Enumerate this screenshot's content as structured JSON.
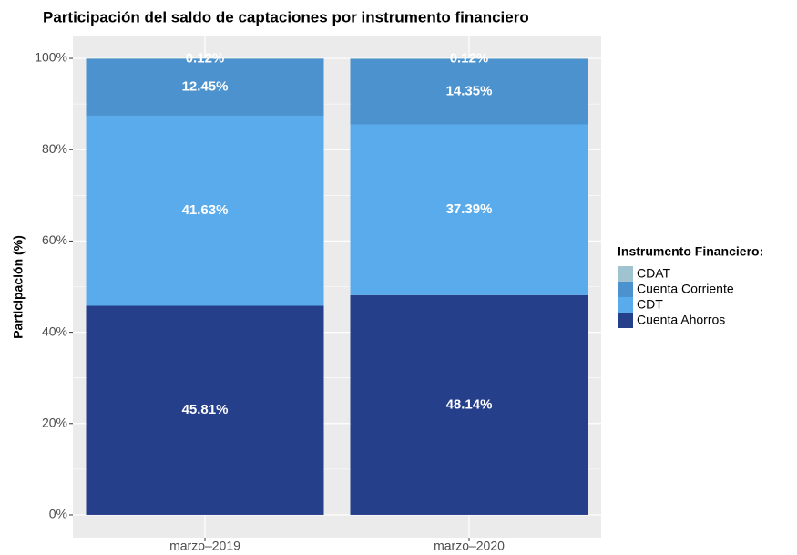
{
  "chart_data": {
    "type": "stacked-bar",
    "title": "Participación del saldo de captaciones por instrumento financiero",
    "y_label": "Participación (%)",
    "legend_title": "Instrumento Financiero:",
    "legend_position": "right",
    "grid": true,
    "categories": [
      "marzo–2019",
      "marzo–2020"
    ],
    "series": [
      {
        "name": "Cuenta Ahorros",
        "color": "#263f8b",
        "values": [
          45.81,
          48.14
        ],
        "value_labels": [
          "45.81%",
          "48.14%"
        ]
      },
      {
        "name": "CDT",
        "color": "#5aabec",
        "values": [
          41.63,
          37.39
        ],
        "value_labels": [
          "41.63%",
          "37.39%"
        ]
      },
      {
        "name": "Cuenta Corriente",
        "color": "#4b92ce",
        "values": [
          12.45,
          14.35
        ],
        "value_labels": [
          "12.45%",
          "14.35%"
        ]
      },
      {
        "name": "CDAT",
        "color": "#9fc3cf",
        "values": [
          0.12,
          0.12
        ],
        "value_labels": [
          "0.12%",
          "0.12%"
        ]
      }
    ],
    "ylim": [
      -5,
      105
    ],
    "yticks": [
      {
        "value": 0,
        "label": "0%"
      },
      {
        "value": 20,
        "label": "20%"
      },
      {
        "value": 40,
        "label": "40%"
      },
      {
        "value": 60,
        "label": "60%"
      },
      {
        "value": 80,
        "label": "80%"
      },
      {
        "value": 100,
        "label": "100%"
      }
    ]
  }
}
